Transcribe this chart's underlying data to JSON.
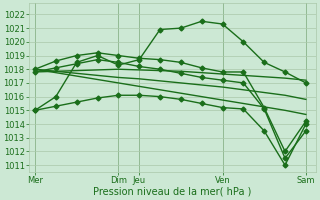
{
  "bg_color": "#cce8d4",
  "grid_color": "#aac8aa",
  "line_color": "#1a6e1a",
  "marker": "D",
  "markersize": 2.5,
  "linewidth": 1.0,
  "ylabel_ticks": [
    1011,
    1012,
    1013,
    1014,
    1015,
    1016,
    1017,
    1018,
    1019,
    1020,
    1021,
    1022
  ],
  "ylim": [
    1010.5,
    1022.8
  ],
  "xlabel": "Pression niveau de la mer( hPa )",
  "xlabel_fontsize": 7,
  "tick_fontsize": 6,
  "xtick_labels": [
    "Mer",
    "Dim",
    "Jeu",
    "Ven",
    "Sam"
  ],
  "xtick_positions": [
    0,
    4,
    5,
    9,
    13
  ],
  "xlim": [
    -0.3,
    13.5
  ],
  "series": [
    [
      1015.0,
      1016.0,
      1018.5,
      1019.0,
      1018.3,
      1018.7,
      1020.9,
      1021.0,
      1021.5,
      1021.3,
      1020.0,
      1018.5,
      1017.8,
      1017.0
    ],
    [
      1017.8,
      1017.85,
      1017.9,
      1017.95,
      1018.0,
      1017.95,
      1017.9,
      1017.85,
      1017.75,
      1017.65,
      1017.55,
      1017.45,
      1017.35,
      1017.2
    ],
    [
      1018.0,
      1017.85,
      1017.7,
      1017.55,
      1017.4,
      1017.3,
      1017.15,
      1017.0,
      1016.85,
      1016.7,
      1016.5,
      1016.3,
      1016.1,
      1015.8
    ],
    [
      1018.0,
      1017.75,
      1017.5,
      1017.25,
      1017.0,
      1016.75,
      1016.5,
      1016.25,
      1016.0,
      1015.75,
      1015.5,
      1015.25,
      1015.0,
      1014.7
    ],
    [
      1015.0,
      1015.3,
      1015.6,
      1015.9,
      1016.1,
      1016.1,
      1016.0,
      1015.8,
      1015.5,
      1015.2,
      1015.1,
      1013.5,
      1011.0,
      1014.0
    ],
    [
      1018.0,
      1018.6,
      1019.0,
      1019.2,
      1019.0,
      1018.8,
      1018.7,
      1018.5,
      1018.1,
      1017.8,
      1017.8,
      1015.2,
      1012.0,
      1014.2
    ],
    [
      1017.8,
      1018.1,
      1018.4,
      1018.7,
      1018.5,
      1018.2,
      1018.0,
      1017.7,
      1017.4,
      1017.2,
      1017.0,
      1015.1,
      1011.5,
      1013.5
    ]
  ],
  "series_markers": [
    true,
    false,
    false,
    false,
    true,
    true,
    true
  ],
  "x_positions": [
    0,
    1,
    2,
    3,
    4,
    5,
    6,
    7,
    8,
    9,
    10,
    11,
    12,
    13
  ],
  "vlines": [
    0,
    4,
    5,
    9,
    13
  ]
}
